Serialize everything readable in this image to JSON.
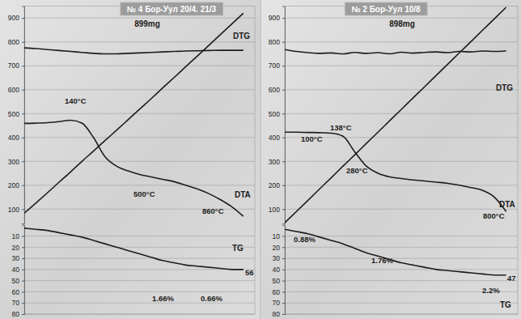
{
  "chart_data": [
    {
      "type": "line",
      "title": "№ 4 Бор-Уул 20/4. 21/3",
      "subtitle": "899mg",
      "x": [
        0,
        5,
        10,
        15,
        20,
        25,
        30,
        35,
        40,
        45,
        50,
        55,
        60,
        65,
        70,
        75,
        80,
        85,
        90,
        95
      ],
      "xlim": [
        0,
        100
      ],
      "ylim": [
        40,
        950
      ],
      "yticks": [
        100,
        200,
        300,
        400,
        500,
        600,
        700,
        800,
        900
      ],
      "y2lim": [
        0,
        80
      ],
      "y2ticks": [
        10,
        20,
        30,
        40,
        50,
        60,
        70,
        80
      ],
      "tick_labels": "y",
      "grid": true,
      "series": [
        {
          "color": "#1c1c1c",
          "values": [
            83,
            125,
            168,
            212,
            255,
            300,
            343,
            387,
            430,
            474,
            518,
            562,
            607,
            651,
            696,
            740,
            785,
            830,
            875,
            920
          ]
        },
        {
          "name": "DTA",
          "color": "#1c1c1c",
          "values": [
            459,
            460,
            462,
            466,
            472,
            460,
            400,
            320,
            280,
            260,
            245,
            235,
            225,
            215,
            200,
            185,
            165,
            140,
            110,
            70
          ]
        },
        {
          "name": "DTG",
          "color": "#1c1c1c",
          "values": [
            775,
            772,
            768,
            764,
            760,
            756,
            752,
            750,
            750,
            752,
            754,
            756,
            758,
            760,
            762,
            763,
            764,
            765,
            765,
            765
          ]
        },
        {
          "name": "TG",
          "color": "#1c1c1c",
          "axis": "y2",
          "values": [
            3,
            4,
            5,
            7,
            9,
            11,
            14,
            17,
            20,
            23,
            26,
            29,
            32,
            34,
            36,
            37,
            38,
            39,
            40,
            40
          ]
        }
      ],
      "annotations": [
        "140°C",
        "500°C",
        "860°C",
        "1.66%",
        "0.66%",
        "56"
      ]
    },
    {
      "type": "line",
      "title": "№ 2 Бор-Уул 10/8",
      "subtitle": "898mg",
      "x": [
        0,
        5,
        10,
        15,
        20,
        25,
        30,
        35,
        40,
        45,
        50,
        55,
        60,
        65,
        70,
        75,
        80,
        85,
        90,
        95
      ],
      "xlim": [
        0,
        100
      ],
      "ylim": [
        40,
        950
      ],
      "yticks": [
        100,
        200,
        300,
        400,
        500,
        600,
        700,
        800,
        900
      ],
      "y2lim": [
        0,
        80
      ],
      "y2ticks": [
        10,
        20,
        30,
        40,
        50,
        60,
        70,
        80
      ],
      "tick_labels": "y",
      "grid": true,
      "series": [
        {
          "color": "#1c1c1c",
          "values": [
            43,
            90,
            137,
            185,
            232,
            280,
            327,
            375,
            422,
            470,
            517,
            565,
            612,
            660,
            707,
            755,
            802,
            850,
            897,
            945
          ]
        },
        {
          "name": "DTA",
          "color": "#1c1c1c",
          "values": [
            422,
            422,
            421,
            420,
            418,
            405,
            340,
            280,
            250,
            235,
            228,
            222,
            218,
            213,
            208,
            200,
            190,
            178,
            150,
            90
          ]
        },
        {
          "name": "DTG",
          "color": "#1c1c1c",
          "values": [
            768,
            760,
            755,
            752,
            754,
            750,
            756,
            752,
            755,
            750,
            757,
            753,
            756,
            758,
            755,
            760,
            758,
            762,
            760,
            763
          ]
        },
        {
          "name": "TG",
          "color": "#1c1c1c",
          "axis": "y2",
          "values": [
            4,
            6,
            8,
            11,
            14,
            17,
            21,
            25,
            28,
            31,
            34,
            36,
            38,
            40,
            41,
            42,
            43,
            44,
            45,
            45
          ]
        }
      ],
      "annotations": [
        "100°C",
        "138°C",
        "280°C",
        "800°C",
        "0.88%",
        "1.76%",
        "2.2%",
        "47"
      ]
    }
  ]
}
